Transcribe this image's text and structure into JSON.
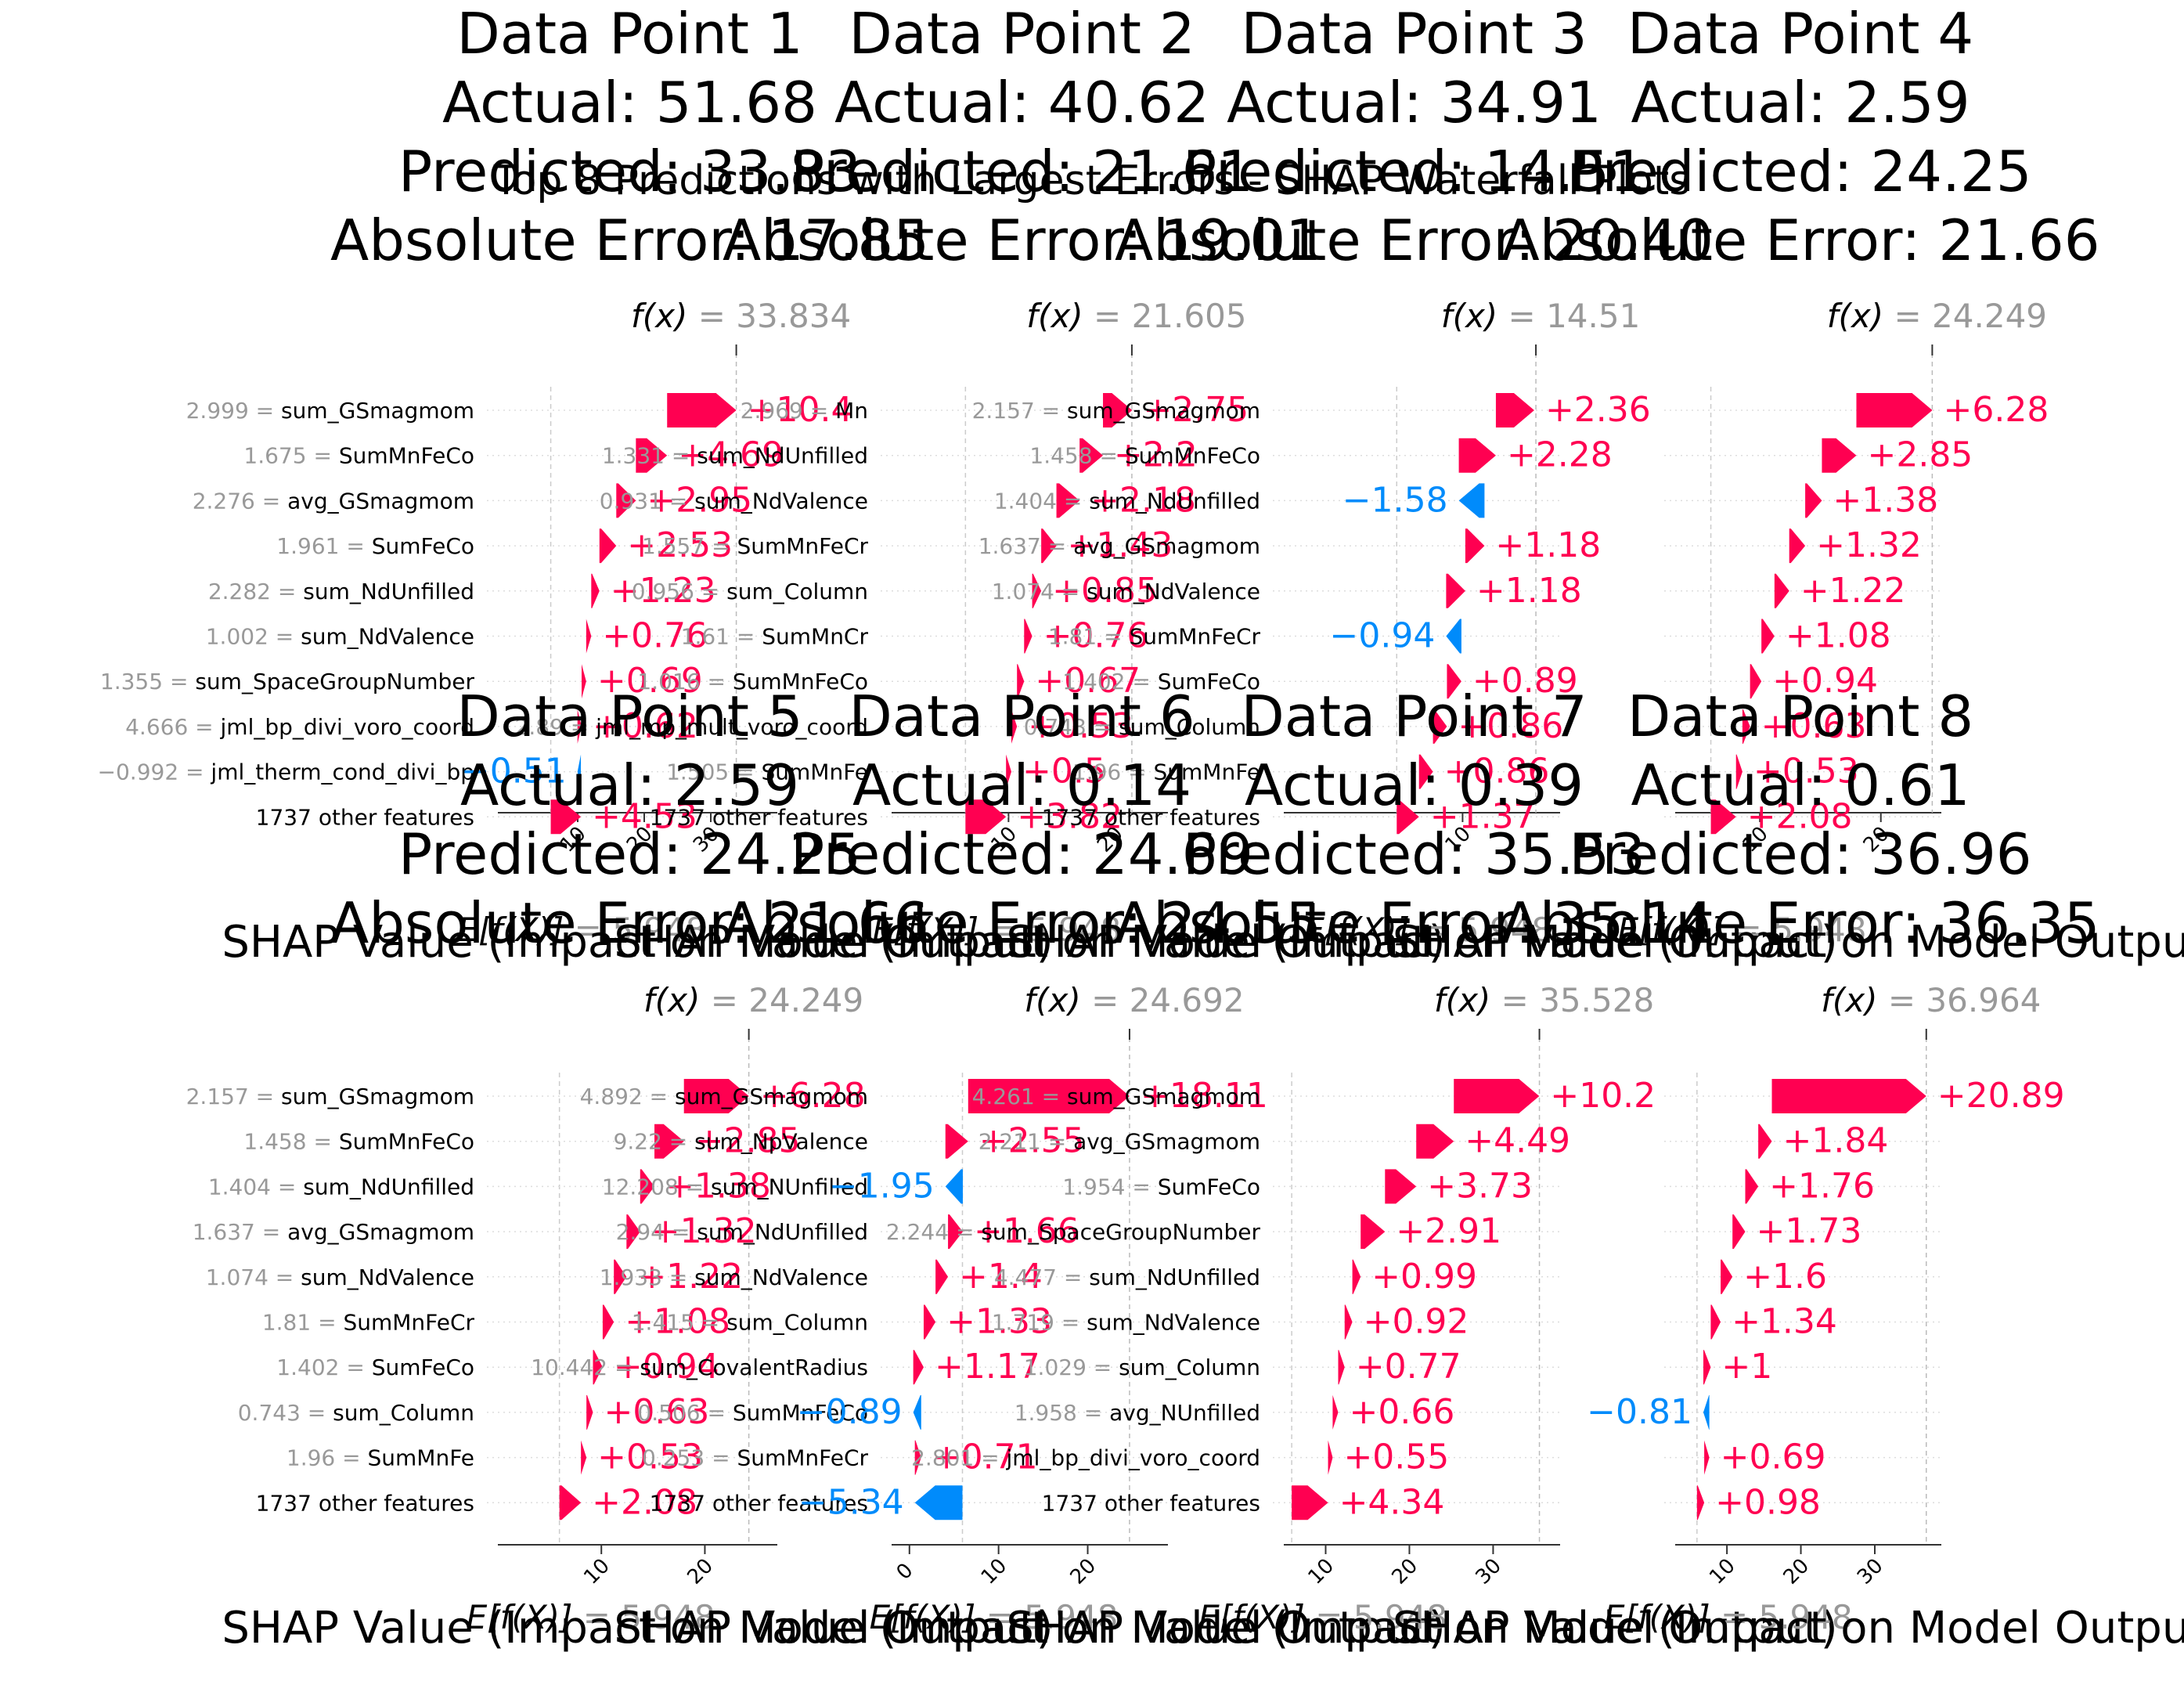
{
  "figure": {
    "suptitle": "Top 8 Predictions with Largest Errors - SHAP Waterfall Plots",
    "colors": {
      "positive": "#ff0051",
      "negative": "#008bfb",
      "muted": "#999999",
      "text": "#000000"
    }
  },
  "chart_data": [
    {
      "type": "waterfall",
      "title_lines": [
        "Data Point 1",
        "Actual: 51.68",
        "Predicted: 33.83",
        "Absolute Error: 17.85"
      ],
      "fx_label": "f(x)",
      "fx_value": "= 33.834",
      "fx": 33.834,
      "efx_label": "E[f(X)]",
      "efx_value": "= 5.948",
      "base": 5.948,
      "xlabel": "SHAP Value (Impact on Model Output)",
      "xlim": [
        -2,
        40
      ],
      "xticks": [
        10,
        20,
        30
      ],
      "features": [
        {
          "value": "2.999",
          "name": "sum_GSmagmom",
          "shap": 10.4,
          "label": "+10.4"
        },
        {
          "value": "1.675",
          "name": "SumMnFeCo",
          "shap": 4.69,
          "label": "+4.69"
        },
        {
          "value": "2.276",
          "name": "avg_GSmagmom",
          "shap": 2.95,
          "label": "+2.95"
        },
        {
          "value": "1.961",
          "name": "SumFeCo",
          "shap": 2.53,
          "label": "+2.53"
        },
        {
          "value": "2.282",
          "name": "sum_NdUnfilled",
          "shap": 1.23,
          "label": "+1.23"
        },
        {
          "value": "1.002",
          "name": "sum_NdValence",
          "shap": 0.76,
          "label": "+0.76"
        },
        {
          "value": "1.355",
          "name": "sum_SpaceGroupNumber",
          "shap": 0.69,
          "label": "+0.69"
        },
        {
          "value": "4.666",
          "name": "jml_bp_divi_voro_coord",
          "shap": 0.62,
          "label": "+0.62"
        },
        {
          "value": "−0.992",
          "name": "jml_therm_cond_divi_bp",
          "shap": -0.51,
          "label": "−0.51"
        },
        {
          "value": "",
          "name": "1737 other features",
          "shap": 4.53,
          "label": "+4.53"
        }
      ]
    },
    {
      "type": "waterfall",
      "title_lines": [
        "Data Point 2",
        "Actual: 40.62",
        "Predicted: 21.61",
        "Absolute Error: 19.01"
      ],
      "fx_label": "f(x)",
      "fx_value": "= 21.605",
      "fx": 21.605,
      "efx_label": "E[f(X)]",
      "efx_value": "= 5.948",
      "base": 5.948,
      "xlabel": "SHAP Value (Impact on Model Output)",
      "xlim": [
        -1,
        25
      ],
      "xticks": [
        10,
        20
      ],
      "features": [
        {
          "value": "2.969",
          "name": "Mn",
          "shap": 2.75,
          "label": "+2.75"
        },
        {
          "value": "1.331",
          "name": "sum_NdUnfilled",
          "shap": 2.2,
          "label": "+2.2"
        },
        {
          "value": "0.931",
          "name": "sum_NdValence",
          "shap": 2.18,
          "label": "+2.18"
        },
        {
          "value": "1.557",
          "name": "SumMnFeCr",
          "shap": 1.43,
          "label": "+1.43"
        },
        {
          "value": "0.956",
          "name": "sum_Column",
          "shap": 0.85,
          "label": "+0.85"
        },
        {
          "value": "1.61",
          "name": "SumMnCr",
          "shap": 0.76,
          "label": "+0.76"
        },
        {
          "value": "1.016",
          "name": "SumMnFeCo",
          "shap": 0.67,
          "label": "+0.67"
        },
        {
          "value": "2.89",
          "name": "jml_mp_mult_voro_coord",
          "shap": 0.53,
          "label": "+0.53"
        },
        {
          "value": "1.505",
          "name": "SumMnFe",
          "shap": 0.5,
          "label": "+0.5"
        },
        {
          "value": "",
          "name": "1737 other features",
          "shap": 3.82,
          "label": "+3.82"
        }
      ]
    },
    {
      "type": "waterfall",
      "title_lines": [
        "Data Point 3",
        "Actual: 34.91",
        "Predicted: 14.51",
        "Absolute Error: 20.40"
      ],
      "fx_label": "f(x)",
      "fx_value": "= 14.51",
      "fx": 14.51,
      "efx_label": "E[f(X)]",
      "efx_value": "= 5.948",
      "base": 5.948,
      "xlabel": "SHAP Value (Impact on Model Output)",
      "xlim": [
        -1,
        16
      ],
      "xticks": [
        10
      ],
      "features": [
        {
          "value": "2.157",
          "name": "sum_GSmagmom",
          "shap": 2.36,
          "label": "+2.36"
        },
        {
          "value": "1.458",
          "name": "SumMnFeCo",
          "shap": 2.28,
          "label": "+2.28"
        },
        {
          "value": "1.404",
          "name": "sum_NdUnfilled",
          "shap": -1.58,
          "label": "−1.58"
        },
        {
          "value": "1.637",
          "name": "avg_GSmagmom",
          "shap": 1.18,
          "label": "+1.18"
        },
        {
          "value": "1.074",
          "name": "sum_NdValence",
          "shap": 1.18,
          "label": "+1.18"
        },
        {
          "value": "1.81",
          "name": "SumMnFeCr",
          "shap": -0.94,
          "label": "−0.94"
        },
        {
          "value": "1.402",
          "name": "SumFeCo",
          "shap": 0.89,
          "label": "+0.89"
        },
        {
          "value": "0.743",
          "name": "sum_Column",
          "shap": 0.86,
          "label": "+0.86"
        },
        {
          "value": "1.96",
          "name": "SumMnFe",
          "shap": 0.86,
          "label": "+0.86"
        },
        {
          "value": "",
          "name": "1737 other features",
          "shap": 1.37,
          "label": "+1.37"
        }
      ]
    },
    {
      "type": "waterfall",
      "title_lines": [
        "Data Point 4",
        "Actual: 2.59",
        "Predicted: 24.25",
        "Absolute Error: 21.66"
      ],
      "fx_label": "f(x)",
      "fx_value": "= 24.249",
      "fx": 24.249,
      "efx_label": "E[f(X)]",
      "efx_value": "= 5.948",
      "base": 5.948,
      "xlabel": "SHAP Value (Impact on Model Output)",
      "xlim": [
        3,
        25
      ],
      "xticks": [
        10,
        20
      ],
      "features": [
        {
          "value": "",
          "name": "",
          "shap": 6.28,
          "label": "+6.28"
        },
        {
          "value": "",
          "name": "",
          "shap": 2.85,
          "label": "+2.85"
        },
        {
          "value": "",
          "name": "",
          "shap": 1.38,
          "label": "+1.38"
        },
        {
          "value": "",
          "name": "",
          "shap": 1.32,
          "label": "+1.32"
        },
        {
          "value": "",
          "name": "",
          "shap": 1.22,
          "label": "+1.22"
        },
        {
          "value": "",
          "name": "",
          "shap": 1.08,
          "label": "+1.08"
        },
        {
          "value": "",
          "name": "",
          "shap": 0.94,
          "label": "+0.94"
        },
        {
          "value": "",
          "name": "",
          "shap": 0.63,
          "label": "+0.63"
        },
        {
          "value": "",
          "name": "",
          "shap": 0.53,
          "label": "+0.53"
        },
        {
          "value": "",
          "name": "",
          "shap": 2.08,
          "label": "+2.08"
        }
      ]
    },
    {
      "type": "waterfall",
      "title_lines": [
        "Data Point 5",
        "Actual: 2.59",
        "Predicted: 24.25",
        "Absolute Error: 21.66"
      ],
      "fx_label": "f(x)",
      "fx_value": "= 24.249",
      "fx": 24.249,
      "efx_label": "E[f(X)]",
      "efx_value": "= 5.948",
      "base": 5.948,
      "xlabel": "SHAP Value (Impact on Model Output)",
      "xlim": [
        0,
        27
      ],
      "xticks": [
        10,
        20
      ],
      "features": [
        {
          "value": "2.157",
          "name": "sum_GSmagmom",
          "shap": 6.28,
          "label": "+6.28"
        },
        {
          "value": "1.458",
          "name": "SumMnFeCo",
          "shap": 2.85,
          "label": "+2.85"
        },
        {
          "value": "1.404",
          "name": "sum_NdUnfilled",
          "shap": 1.38,
          "label": "+1.38"
        },
        {
          "value": "1.637",
          "name": "avg_GSmagmom",
          "shap": 1.32,
          "label": "+1.32"
        },
        {
          "value": "1.074",
          "name": "sum_NdValence",
          "shap": 1.22,
          "label": "+1.22"
        },
        {
          "value": "1.81",
          "name": "SumMnFeCr",
          "shap": 1.08,
          "label": "+1.08"
        },
        {
          "value": "1.402",
          "name": "SumFeCo",
          "shap": 0.94,
          "label": "+0.94"
        },
        {
          "value": "0.743",
          "name": "sum_Column",
          "shap": 0.63,
          "label": "+0.63"
        },
        {
          "value": "1.96",
          "name": "SumMnFe",
          "shap": 0.53,
          "label": "+0.53"
        },
        {
          "value": "",
          "name": "1737 other features",
          "shap": 2.08,
          "label": "+2.08"
        }
      ]
    },
    {
      "type": "waterfall",
      "title_lines": [
        "Data Point 6",
        "Actual: 0.14",
        "Predicted: 24.69",
        "Absolute Error: 24.55"
      ],
      "fx_label": "f(x)",
      "fx_value": "= 24.692",
      "fx": 24.692,
      "efx_label": "E[f(X)]",
      "efx_value": "= 5.948",
      "base": 5.948,
      "xlabel": "SHAP Value (Impact on Model Output)",
      "xlim": [
        -2,
        29
      ],
      "xticks": [
        0,
        10,
        20
      ],
      "features": [
        {
          "value": "4.892",
          "name": "sum_GSmagmom",
          "shap": 18.11,
          "label": "+18.11"
        },
        {
          "value": "9.22",
          "name": "sum_NpValence",
          "shap": 2.55,
          "label": "+2.55"
        },
        {
          "value": "12.208",
          "name": "sum_NUnfilled",
          "shap": -1.95,
          "label": "−1.95"
        },
        {
          "value": "2.94",
          "name": "sum_NdUnfilled",
          "shap": 1.66,
          "label": "+1.66"
        },
        {
          "value": "1.933",
          "name": "sum_NdValence",
          "shap": 1.4,
          "label": "+1.4"
        },
        {
          "value": "1.415",
          "name": "sum_Column",
          "shap": 1.33,
          "label": "+1.33"
        },
        {
          "value": "10.442",
          "name": "sum_CovalentRadius",
          "shap": 1.17,
          "label": "+1.17"
        },
        {
          "value": "0.506",
          "name": "SumMnFeCo",
          "shap": -0.89,
          "label": "−0.89"
        },
        {
          "value": "0.253",
          "name": "SumMnFeCr",
          "shap": 0.71,
          "label": "+0.71"
        },
        {
          "value": "",
          "name": "1737 other features",
          "shap": -5.34,
          "label": "−5.34"
        }
      ]
    },
    {
      "type": "waterfall",
      "title_lines": [
        "Data Point 7",
        "Actual: 0.39",
        "Predicted: 35.53",
        "Absolute Error: 35.14"
      ],
      "fx_label": "f(x)",
      "fx_value": "= 35.528",
      "fx": 35.528,
      "efx_label": "E[f(X)]",
      "efx_value": "= 5.948",
      "base": 5.948,
      "xlabel": "SHAP Value (Impact on Model Output)",
      "xlim": [
        5,
        38
      ],
      "xticks": [
        10,
        20,
        30
      ],
      "features": [
        {
          "value": "4.261",
          "name": "sum_GSmagmom",
          "shap": 10.2,
          "label": "+10.2"
        },
        {
          "value": "2.211",
          "name": "avg_GSmagmom",
          "shap": 4.49,
          "label": "+4.49"
        },
        {
          "value": "1.954",
          "name": "SumFeCo",
          "shap": 3.73,
          "label": "+3.73"
        },
        {
          "value": "2.244",
          "name": "sum_SpaceGroupNumber",
          "shap": 2.91,
          "label": "+2.91"
        },
        {
          "value": "4.477",
          "name": "sum_NdUnfilled",
          "shap": 0.99,
          "label": "+0.99"
        },
        {
          "value": "1.719",
          "name": "sum_NdValence",
          "shap": 0.92,
          "label": "+0.92"
        },
        {
          "value": "1.029",
          "name": "sum_Column",
          "shap": 0.77,
          "label": "+0.77"
        },
        {
          "value": "1.958",
          "name": "avg_NUnfilled",
          "shap": 0.66,
          "label": "+0.66"
        },
        {
          "value": "2.801",
          "name": "jml_bp_divi_voro_coord",
          "shap": 0.55,
          "label": "+0.55"
        },
        {
          "value": "",
          "name": "1737 other features",
          "shap": 4.34,
          "label": "+4.34"
        }
      ]
    },
    {
      "type": "waterfall",
      "title_lines": [
        "Data Point 8",
        "Actual: 0.61",
        "Predicted: 36.96",
        "Absolute Error: 36.35"
      ],
      "fx_label": "f(x)",
      "fx_value": "= 36.964",
      "fx": 36.964,
      "efx_label": "E[f(X)]",
      "efx_value": "= 5.948",
      "base": 5.948,
      "xlabel": "SHAP Value (Impact on Model Output)",
      "xlim": [
        3,
        39
      ],
      "xticks": [
        10,
        20,
        30
      ],
      "features": [
        {
          "value": "",
          "name": "",
          "shap": 20.89,
          "label": "+20.89"
        },
        {
          "value": "",
          "name": "",
          "shap": 1.84,
          "label": "+1.84"
        },
        {
          "value": "",
          "name": "",
          "shap": 1.76,
          "label": "+1.76"
        },
        {
          "value": "",
          "name": "",
          "shap": 1.73,
          "label": "+1.73"
        },
        {
          "value": "",
          "name": "",
          "shap": 1.6,
          "label": "+1.6"
        },
        {
          "value": "",
          "name": "",
          "shap": 1.34,
          "label": "+1.34"
        },
        {
          "value": "",
          "name": "",
          "shap": 1.0,
          "label": "+1"
        },
        {
          "value": "",
          "name": "",
          "shap": -0.81,
          "label": "−0.81"
        },
        {
          "value": "",
          "name": "",
          "shap": 0.69,
          "label": "+0.69"
        },
        {
          "value": "",
          "name": "",
          "shap": 0.98,
          "label": "+0.98"
        }
      ]
    }
  ]
}
